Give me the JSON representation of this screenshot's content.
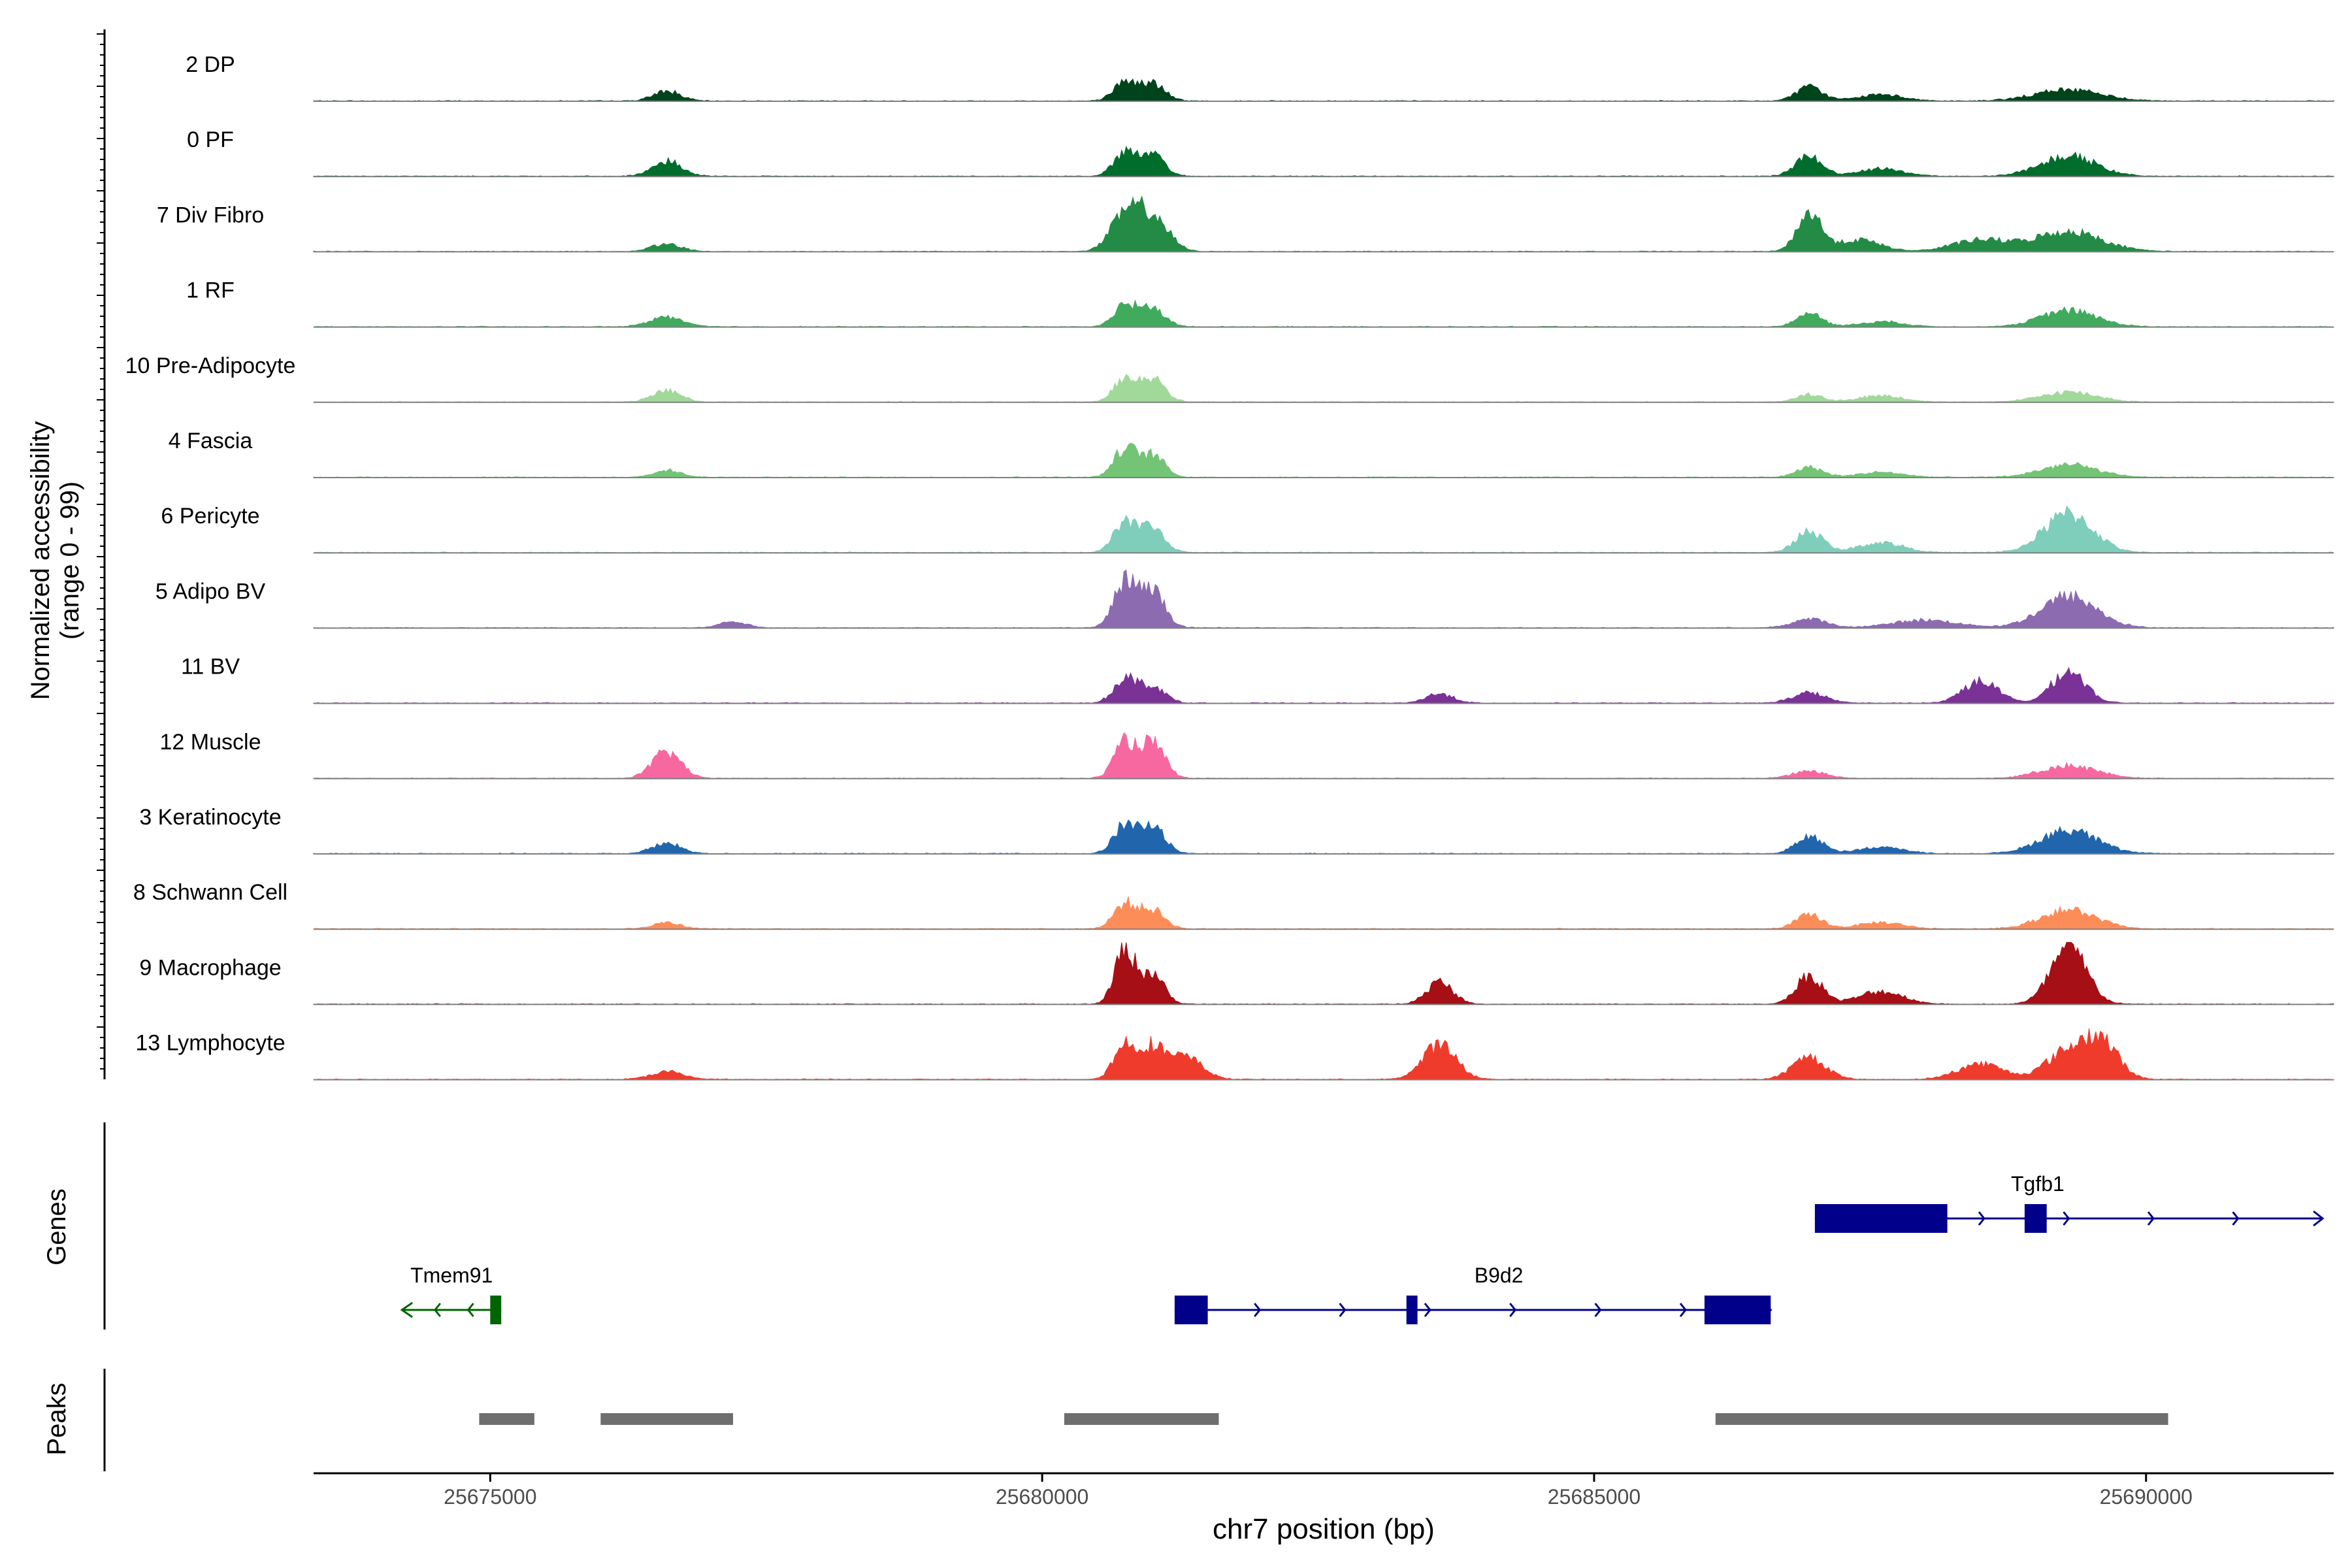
{
  "chart_data": {
    "type": "area",
    "title": "",
    "ylabel": "Normalized accessibility",
    "ylabel2": "(range 0 - 99)",
    "xlabel": "chr7 position (bp)",
    "xlim": [
      25673400,
      25691700
    ],
    "ylim": [
      0,
      99
    ],
    "xticks": [
      25675000,
      25680000,
      25685000,
      25690000
    ],
    "xtick_labels": [
      "25675000",
      "25680000",
      "25685000",
      "25690000"
    ],
    "peak_centers": [
      25676600,
      25680750,
      25681000,
      25683600,
      25686950,
      25687600,
      25688500,
      25689300,
      25689600
    ],
    "tracks": [
      {
        "label": "2 DP",
        "color": "#00441b",
        "peaks": [
          [
            25676600,
            0.16,
            120
          ],
          [
            25680750,
            0.3,
            100
          ],
          [
            25681000,
            0.28,
            110
          ],
          [
            25686950,
            0.22,
            120
          ],
          [
            25687600,
            0.1,
            200
          ],
          [
            25689300,
            0.18,
            300
          ]
        ]
      },
      {
        "label": "0 PF",
        "color": "#006d2c",
        "peaks": [
          [
            25676600,
            0.24,
            130
          ],
          [
            25680750,
            0.38,
            100
          ],
          [
            25681000,
            0.32,
            110
          ],
          [
            25686950,
            0.32,
            120
          ],
          [
            25687600,
            0.12,
            200
          ],
          [
            25689300,
            0.32,
            250
          ]
        ]
      },
      {
        "label": "7 Div Fibro",
        "color": "#238b45",
        "peaks": [
          [
            25676600,
            0.12,
            130
          ],
          [
            25680750,
            0.55,
            130
          ],
          [
            25681000,
            0.55,
            140
          ],
          [
            25686950,
            0.6,
            110
          ],
          [
            25687400,
            0.18,
            200
          ],
          [
            25688500,
            0.18,
            250
          ],
          [
            25689300,
            0.32,
            300
          ]
        ]
      },
      {
        "label": "1 RF",
        "color": "#41ab5d",
        "peaks": [
          [
            25676600,
            0.16,
            150
          ],
          [
            25680750,
            0.35,
            100
          ],
          [
            25681000,
            0.3,
            110
          ],
          [
            25686950,
            0.22,
            110
          ],
          [
            25687600,
            0.08,
            200
          ],
          [
            25689300,
            0.26,
            250
          ]
        ]
      },
      {
        "label": "10 Pre-Adipocyte",
        "color": "#a1d99b",
        "peaks": [
          [
            25676600,
            0.18,
            130
          ],
          [
            25680750,
            0.38,
            100
          ],
          [
            25681000,
            0.38,
            110
          ],
          [
            25686950,
            0.12,
            120
          ],
          [
            25687600,
            0.1,
            200
          ],
          [
            25689300,
            0.16,
            250
          ]
        ]
      },
      {
        "label": "4 Fascia",
        "color": "#74c476",
        "peaks": [
          [
            25676600,
            0.12,
            120
          ],
          [
            25680750,
            0.45,
            100
          ],
          [
            25681000,
            0.35,
            110
          ],
          [
            25686950,
            0.16,
            120
          ],
          [
            25687600,
            0.08,
            200
          ],
          [
            25689300,
            0.2,
            250
          ]
        ]
      },
      {
        "label": "6 Pericyte",
        "color": "#7fcdbb",
        "peaks": [
          [
            25680750,
            0.5,
            100
          ],
          [
            25681000,
            0.4,
            110
          ],
          [
            25686950,
            0.35,
            120
          ],
          [
            25687600,
            0.16,
            200
          ],
          [
            25689300,
            0.62,
            220
          ]
        ]
      },
      {
        "label": "5 Adipo BV",
        "color": "#8c6bb1",
        "peaks": [
          [
            25677200,
            0.1,
            120
          ],
          [
            25680750,
            0.72,
            100
          ],
          [
            25681000,
            0.58,
            110
          ],
          [
            25686950,
            0.14,
            150
          ],
          [
            25688000,
            0.12,
            300
          ],
          [
            25689300,
            0.5,
            250
          ]
        ]
      },
      {
        "label": "11 BV",
        "color": "#7a3296",
        "peaks": [
          [
            25680750,
            0.4,
            100
          ],
          [
            25681000,
            0.28,
            110
          ],
          [
            25683600,
            0.15,
            120
          ],
          [
            25686950,
            0.16,
            150
          ],
          [
            25688500,
            0.35,
            160
          ],
          [
            25689300,
            0.52,
            150
          ]
        ]
      },
      {
        "label": "12 Muscle",
        "color": "#f768a1",
        "peaks": [
          [
            25676600,
            0.42,
            130
          ],
          [
            25680750,
            0.55,
            100
          ],
          [
            25681000,
            0.55,
            110
          ],
          [
            25686950,
            0.12,
            150
          ],
          [
            25689300,
            0.2,
            250
          ]
        ]
      },
      {
        "label": "3 Keratinocyte",
        "color": "#2166ac",
        "peaks": [
          [
            25676600,
            0.16,
            130
          ],
          [
            25680750,
            0.45,
            100
          ],
          [
            25681000,
            0.45,
            110
          ],
          [
            25686950,
            0.28,
            120
          ],
          [
            25687600,
            0.1,
            200
          ],
          [
            25689300,
            0.38,
            250
          ]
        ]
      },
      {
        "label": "8 Schwann Cell",
        "color": "#fc8d59",
        "peaks": [
          [
            25676600,
            0.1,
            130
          ],
          [
            25680750,
            0.4,
            100
          ],
          [
            25681000,
            0.3,
            110
          ],
          [
            25686950,
            0.22,
            120
          ],
          [
            25687600,
            0.1,
            200
          ],
          [
            25689300,
            0.3,
            250
          ]
        ]
      },
      {
        "label": "9 Macrophage",
        "color": "#a50f15",
        "peaks": [
          [
            25680750,
            0.88,
            90
          ],
          [
            25681000,
            0.5,
            100
          ],
          [
            25683600,
            0.35,
            120
          ],
          [
            25686950,
            0.45,
            120
          ],
          [
            25687600,
            0.2,
            200
          ],
          [
            25689300,
            0.9,
            160
          ]
        ]
      },
      {
        "label": "13 Lymphocyte",
        "color": "#ef3b2c",
        "peaks": [
          [
            25676600,
            0.12,
            150
          ],
          [
            25680750,
            0.55,
            100
          ],
          [
            25681000,
            0.5,
            110
          ],
          [
            25681300,
            0.35,
            150
          ],
          [
            25683600,
            0.55,
            150
          ],
          [
            25686950,
            0.35,
            150
          ],
          [
            25688500,
            0.25,
            200
          ],
          [
            25689300,
            0.45,
            200
          ],
          [
            25689600,
            0.55,
            150
          ]
        ]
      }
    ],
    "genes": [
      {
        "name": "Tmem91",
        "strand": "-",
        "color": "#006400",
        "start": 25674200,
        "end": 25675100,
        "row": 2,
        "exons": [
          [
            25675000,
            25675100
          ]
        ]
      },
      {
        "name": "B9d2",
        "strand": "+",
        "color": "#00008b",
        "start": 25681200,
        "end": 25686600,
        "row": 2,
        "exons": [
          [
            25681200,
            25681500
          ],
          [
            25683300,
            25683400
          ],
          [
            25686000,
            25686600
          ]
        ]
      },
      {
        "name": "Tgfb1",
        "strand": "+",
        "color": "#00008b",
        "start": 25687000,
        "end": 25691600,
        "row": 1,
        "exons": [
          [
            25687000,
            25688200
          ],
          [
            25688900,
            25689100
          ]
        ]
      }
    ],
    "peaks_track": [
      [
        25674900,
        25675400
      ],
      [
        25676000,
        25677200
      ],
      [
        25680200,
        25681600
      ],
      [
        25686100,
        25690200
      ]
    ]
  },
  "panels": {
    "genes_label": "Genes",
    "peaks_label": "Peaks"
  }
}
